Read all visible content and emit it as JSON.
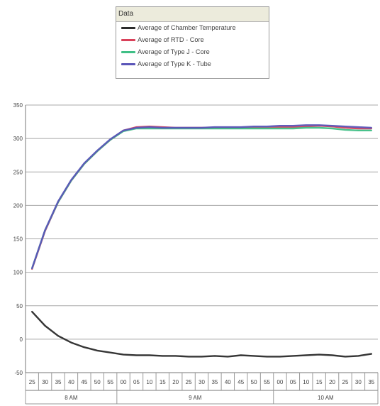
{
  "legend": {
    "header": "Data",
    "items": [
      {
        "label": "Average of Chamber Temperature",
        "color": "#2b2b2b"
      },
      {
        "label": "Average of RTD - Core",
        "color": "#d9415a"
      },
      {
        "label": "Average of Type J - Core",
        "color": "#3fbf86"
      },
      {
        "label": "Average of Type K - Tube",
        "color": "#5a55b8"
      }
    ]
  },
  "chart_data": {
    "type": "line",
    "title": "",
    "xlabel": "",
    "ylabel": "",
    "ylim": [
      -50,
      350
    ],
    "yticks": [
      -50,
      0,
      50,
      100,
      150,
      200,
      250,
      300,
      350
    ],
    "grid": "horizontal",
    "legend_position": "top",
    "categories": [
      "25",
      "30",
      "35",
      "40",
      "45",
      "50",
      "55",
      "00",
      "05",
      "10",
      "15",
      "20",
      "25",
      "30",
      "35",
      "40",
      "45",
      "50",
      "55",
      "00",
      "05",
      "10",
      "15",
      "20",
      "25",
      "30",
      "35"
    ],
    "hour_groups": [
      {
        "label": "8 AM",
        "count": 7
      },
      {
        "label": "9 AM",
        "count": 12
      },
      {
        "label": "10 AM",
        "count": 8
      }
    ],
    "series": [
      {
        "name": "Average of Chamber Temperature",
        "color": "#2b2b2b",
        "values": [
          41,
          20,
          5,
          -5,
          -12,
          -17,
          -20,
          -23,
          -24,
          -24,
          -25,
          -25,
          -26,
          -26,
          -25,
          -26,
          -24,
          -25,
          -26,
          -26,
          -25,
          -24,
          -23,
          -24,
          -26,
          -25,
          -22
        ]
      },
      {
        "name": "Average of RTD - Core",
        "color": "#d9415a",
        "values": [
          105,
          162,
          205,
          237,
          262,
          281,
          298,
          312,
          317,
          318,
          317,
          316,
          316,
          316,
          316,
          316,
          316,
          316,
          316,
          317,
          317,
          318,
          319,
          318,
          316,
          315,
          315
        ]
      },
      {
        "name": "Average of Type J - Core",
        "color": "#3fbf86",
        "values": [
          106,
          163,
          205,
          237,
          262,
          281,
          298,
          311,
          315,
          315,
          315,
          315,
          315,
          315,
          315,
          315,
          315,
          315,
          315,
          315,
          315,
          316,
          316,
          315,
          313,
          312,
          312
        ]
      },
      {
        "name": "Average of Type K - Tube",
        "color": "#5a55b8",
        "values": [
          106,
          163,
          206,
          238,
          263,
          282,
          299,
          312,
          316,
          317,
          316,
          316,
          316,
          316,
          317,
          317,
          317,
          318,
          318,
          319,
          319,
          320,
          320,
          319,
          318,
          317,
          316
        ]
      }
    ]
  }
}
